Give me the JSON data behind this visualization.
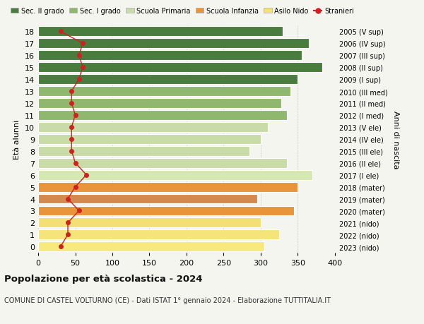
{
  "ages": [
    0,
    1,
    2,
    3,
    4,
    5,
    6,
    7,
    8,
    9,
    10,
    11,
    12,
    13,
    14,
    15,
    16,
    17,
    18
  ],
  "bar_values": [
    305,
    325,
    300,
    345,
    295,
    350,
    370,
    335,
    285,
    300,
    310,
    335,
    328,
    340,
    350,
    383,
    355,
    365,
    330
  ],
  "bar_colors": [
    "#f7e97e",
    "#f5e47a",
    "#f3df76",
    "#e8943a",
    "#d4894e",
    "#e8943a",
    "#d4e8b0",
    "#c8dba8",
    "#c8dba8",
    "#c8dba8",
    "#c8dba8",
    "#8fb86e",
    "#8fb86e",
    "#8fb86e",
    "#4a7c3f",
    "#4a7c3f",
    "#4a7c3f",
    "#4a7c3f",
    "#4a7c3f"
  ],
  "right_labels": [
    "2023 (nido)",
    "2022 (nido)",
    "2021 (nido)",
    "2020 (mater)",
    "2019 (mater)",
    "2018 (mater)",
    "2017 (I ele)",
    "2016 (II ele)",
    "2015 (III ele)",
    "2014 (IV ele)",
    "2013 (V ele)",
    "2012 (I med)",
    "2011 (II med)",
    "2010 (III med)",
    "2009 (I sup)",
    "2008 (II sup)",
    "2007 (III sup)",
    "2006 (IV sup)",
    "2005 (V sup)"
  ],
  "stranieri_values": [
    30,
    40,
    40,
    55,
    40,
    50,
    65,
    50,
    45,
    45,
    45,
    50,
    45,
    45,
    55,
    60,
    55,
    60,
    30
  ],
  "legend_labels": [
    "Sec. II grado",
    "Sec. I grado",
    "Scuola Primaria",
    "Scuola Infanzia",
    "Asilo Nido",
    "Stranieri"
  ],
  "legend_colors": [
    "#4a7c3f",
    "#8fb86e",
    "#c8dba8",
    "#e8943a",
    "#f5e07a",
    "#cc2222"
  ],
  "ylabel": "Età alunni",
  "ylabel_right": "Anni di nascita",
  "title": "Popolazione per età scolastica - 2024",
  "subtitle": "COMUNE DI CASTEL VOLTURNO (CE) - Dati ISTAT 1° gennaio 2024 - Elaborazione TUTTITALIA.IT",
  "xlim": [
    0,
    400
  ],
  "background_color": "#f5f5f0"
}
